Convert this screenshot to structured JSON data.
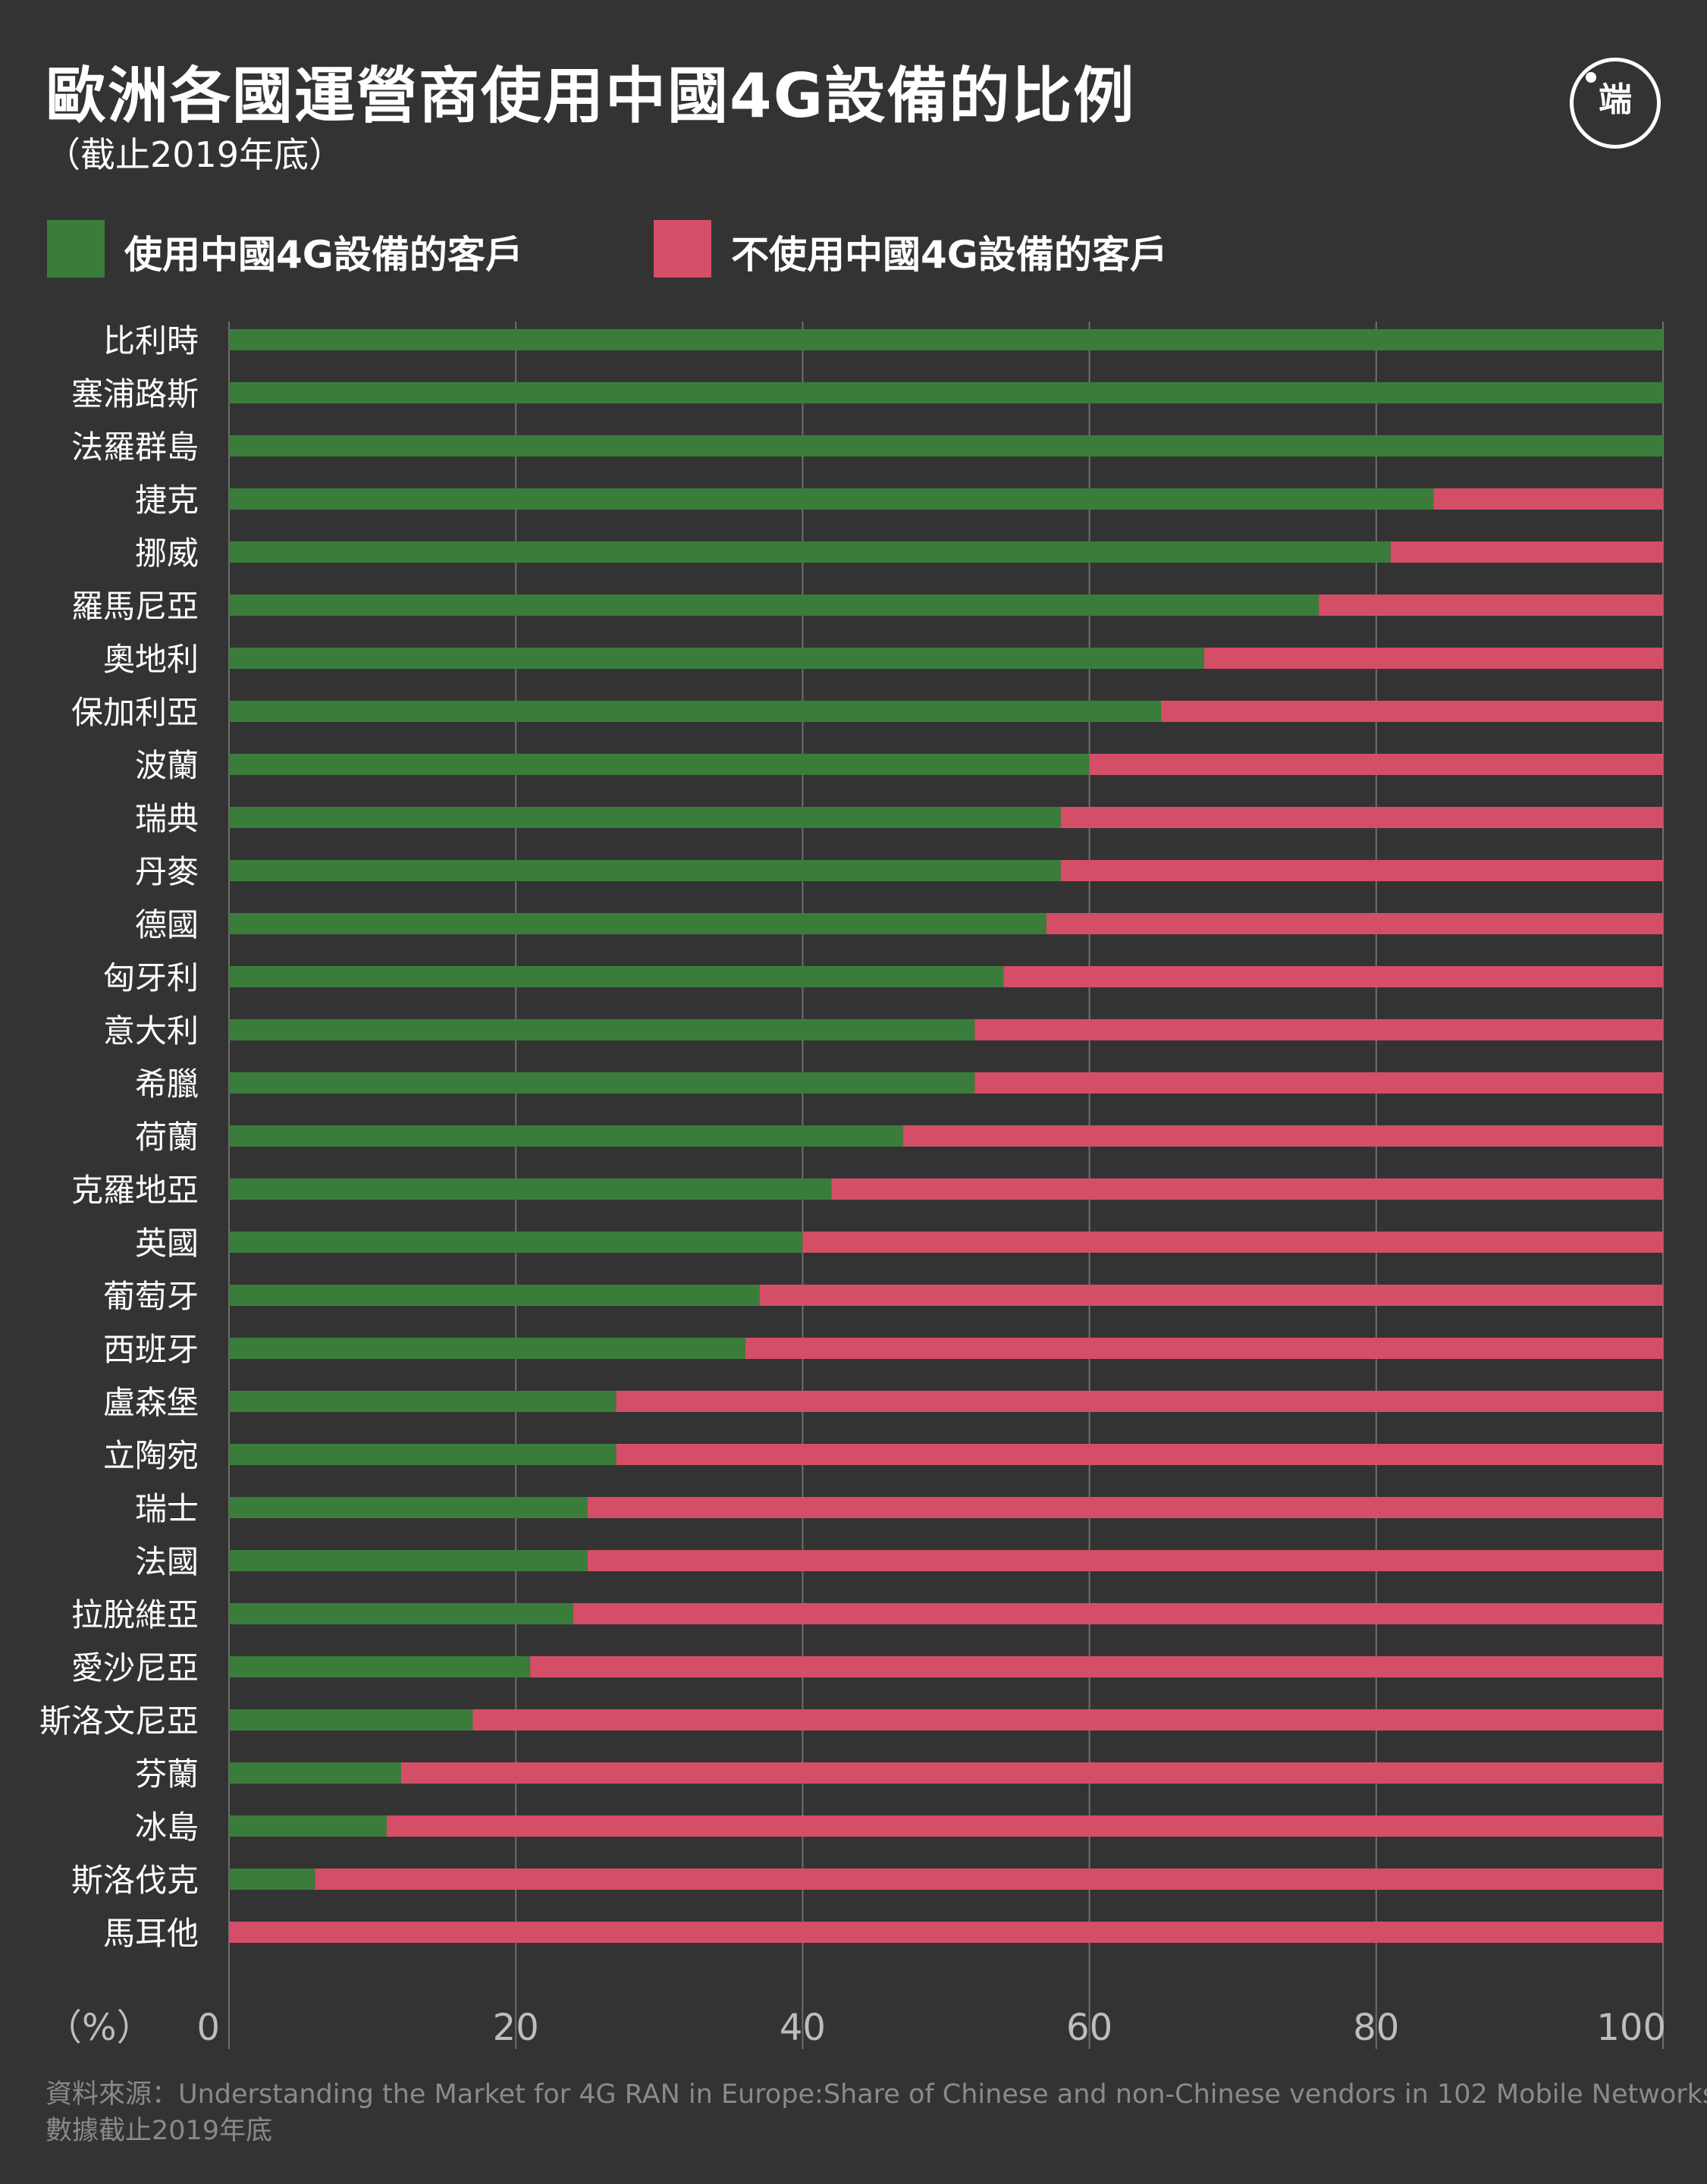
{
  "title": "歐洲各國運營商使用中國4G設備的比例",
  "subtitle": "（截止2019年底）",
  "logo_text": "端",
  "source_line1": "資料來源：Understanding the Market for 4G RAN in Europe:Share of Chinese and non-Chinese vendors in 102 Mobile Networks",
  "source_line2": "數據截止2019年底",
  "colors": {
    "background": "#333333",
    "chinese": "#3a7d3b",
    "non_chinese": "#d44e67",
    "grid": "#6e6e6e",
    "text": "#ffffff",
    "axis_text": "#bdbdbd",
    "source_text": "#8a8a8a"
  },
  "chart_data": {
    "type": "bar",
    "orientation": "horizontal",
    "stacked": true,
    "unit_label": "（%）",
    "xlim": [
      0,
      100
    ],
    "xticks": [
      0,
      20,
      40,
      60,
      80,
      100
    ],
    "grid": true,
    "legend_position": "top",
    "categories": [
      "比利時",
      "塞浦路斯",
      "法羅群島",
      "捷克",
      "挪威",
      "羅馬尼亞",
      "奧地利",
      "保加利亞",
      "波蘭",
      "瑞典",
      "丹麥",
      "德國",
      "匈牙利",
      "意大利",
      "希臘",
      "荷蘭",
      "克羅地亞",
      "英國",
      "葡萄牙",
      "西班牙",
      "盧森堡",
      "立陶宛",
      "瑞士",
      "法國",
      "拉脫維亞",
      "愛沙尼亞",
      "斯洛文尼亞",
      "芬蘭",
      "冰島",
      "斯洛伐克",
      "馬耳他"
    ],
    "series": [
      {
        "name": "使用中國4G設備的客戶",
        "color": "#3a7d3b",
        "values": [
          100,
          100,
          100,
          84,
          81,
          76,
          68,
          65,
          60,
          58,
          58,
          57,
          54,
          52,
          52,
          47,
          42,
          40,
          37,
          36,
          27,
          27,
          25,
          25,
          24,
          21,
          17,
          12,
          11,
          6,
          0
        ]
      },
      {
        "name": "不使用中國4G設備的客戶",
        "color": "#d44e67",
        "values": [
          0,
          0,
          0,
          16,
          19,
          24,
          32,
          35,
          40,
          42,
          42,
          43,
          46,
          48,
          48,
          53,
          58,
          60,
          63,
          64,
          73,
          73,
          75,
          75,
          76,
          79,
          83,
          88,
          89,
          94,
          100
        ]
      }
    ]
  }
}
